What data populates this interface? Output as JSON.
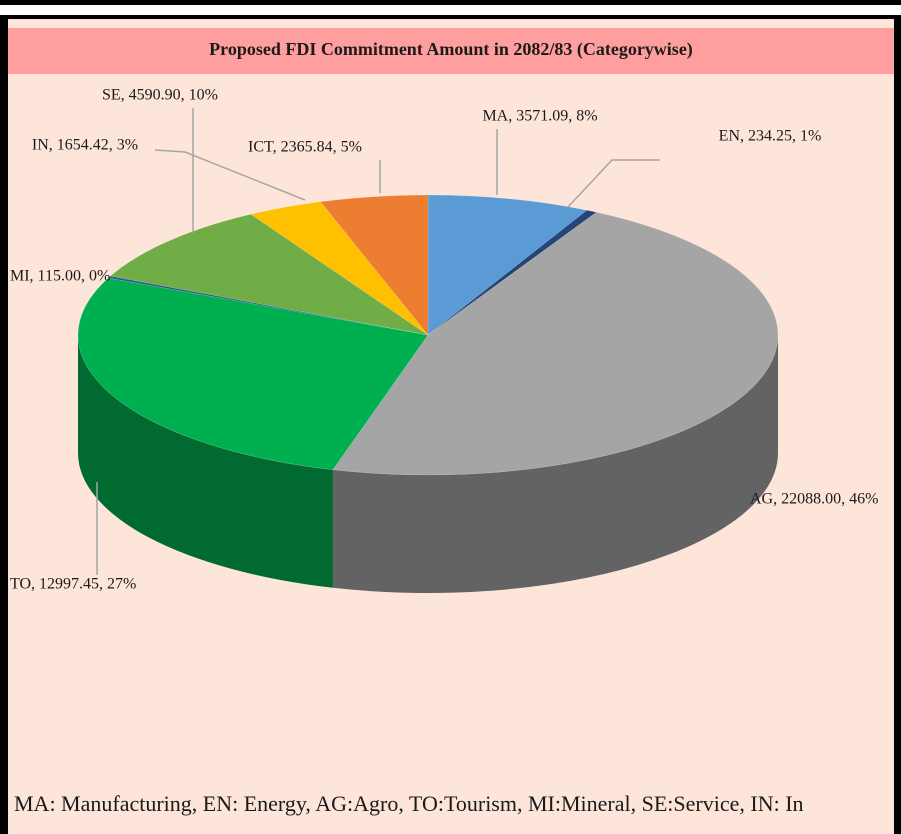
{
  "chart_data": {
    "type": "pie",
    "title": "Proposed FDI Commitment Amount in 2082/83 (Categorywise)",
    "categories": [
      "MA",
      "EN",
      "AG",
      "TO",
      "MI",
      "SE",
      "IN",
      "ICT"
    ],
    "values": [
      3571.09,
      234.25,
      22088.0,
      12997.45,
      115.0,
      4590.9,
      1654.42,
      2365.84
    ],
    "value_labels": [
      "MA, 3571.09, 8%",
      "EN, 234.25, 1%",
      "AG, 22088.00, 46%",
      "TO, 12997.45, 27%",
      "MI, 115.00, 0%",
      "SE, 4590.90, 10%",
      "IN, 1654.42, 3%",
      "ICT, 2365.84, 5%"
    ],
    "colors": [
      "#5b9bd5",
      "#264478",
      "#a5a5a5",
      "#00b050",
      "#255e91",
      "#70ad47",
      "#ffc000",
      "#ed7d31"
    ]
  },
  "note": "MA: Manufacturing, EN: Energy,  AG:Agro,  TO:Tourism, MI:Mineral,  SE:Service,  IN: In"
}
